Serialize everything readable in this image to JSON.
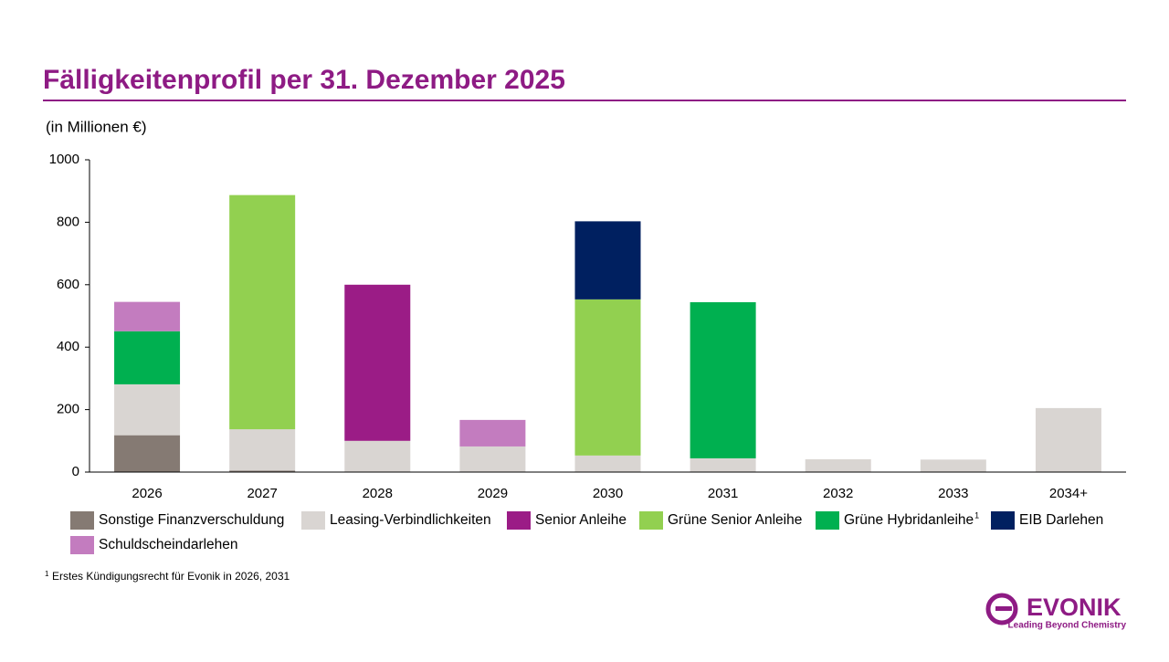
{
  "chart_data": {
    "type": "stacked_bar",
    "title": "Fälligkeitenprofil per 31. Dezember 2025",
    "subtitle": "(in Millionen €)",
    "categories": [
      "2026",
      "2027",
      "2028",
      "2029",
      "2030",
      "2031",
      "2032",
      "2033",
      "2034+"
    ],
    "series": [
      {
        "name": "Sonstige Finanzverschuldung",
        "color": "#857a73",
        "values": [
          118,
          5,
          null,
          null,
          null,
          null,
          null,
          null,
          null
        ]
      },
      {
        "name": "Leasing-Verbindlichkeiten",
        "color": "#d9d5d2",
        "values": [
          163,
          132,
          100,
          82,
          53,
          44,
          41,
          40,
          205
        ]
      },
      {
        "name": "Senior Anleihe",
        "color": "#9b1c86",
        "values": [
          null,
          null,
          500,
          null,
          null,
          null,
          null,
          null,
          null
        ]
      },
      {
        "name": "Grüne Senior Anleihe",
        "color": "#92d050",
        "values": [
          null,
          750,
          null,
          null,
          500,
          null,
          null,
          null,
          null
        ]
      },
      {
        "name": "Grüne Hybridanleihe",
        "name_note": "1",
        "color": "#00b050",
        "values": [
          170,
          null,
          null,
          null,
          null,
          500,
          null,
          null,
          null
        ]
      },
      {
        "name": "EIB Darlehen",
        "color": "#002060",
        "values": [
          null,
          null,
          null,
          null,
          250,
          null,
          null,
          null,
          null
        ]
      },
      {
        "name": "Schuldscheindarlehen",
        "color": "#c37cbf",
        "values": [
          94,
          null,
          null,
          85,
          null,
          null,
          null,
          null,
          null
        ]
      }
    ],
    "ylim": [
      0,
      1000
    ],
    "yticks": [
      0,
      200,
      400,
      600,
      800,
      1000
    ],
    "grid": false,
    "footnote": {
      "marker": "1",
      "text": "Erstes Kündigungsrecht für Evonik in 2026, 2031"
    }
  },
  "logo": {
    "name": "EVONIK",
    "tagline": "Leading Beyond Chemistry"
  }
}
